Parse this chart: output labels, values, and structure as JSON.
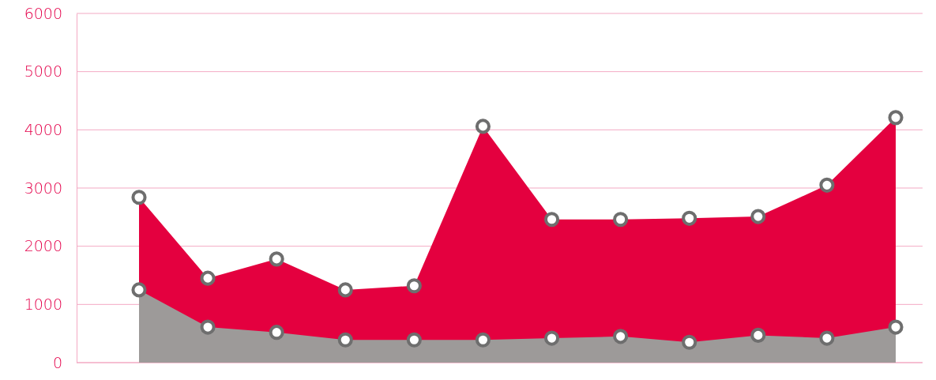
{
  "chart_data": {
    "type": "area",
    "categories": [
      null,
      null,
      null,
      null,
      null,
      null,
      null,
      null,
      null,
      null,
      null,
      null
    ],
    "series": [
      {
        "color": "#e4003f",
        "values": [
          2840,
          1450,
          1780,
          1250,
          1320,
          4060,
          2460,
          2460,
          2480,
          2510,
          3050,
          4210
        ]
      },
      {
        "color": "#9d9a99",
        "values": [
          1250,
          610,
          520,
          390,
          390,
          390,
          420,
          450,
          350,
          470,
          420,
          610
        ]
      }
    ],
    "ylim": [
      0,
      6000
    ],
    "yticks": [
      0,
      1000,
      2000,
      3000,
      4000,
      5000,
      6000
    ],
    "grid": "y",
    "marker": "circle",
    "tick_labels": "y"
  }
}
